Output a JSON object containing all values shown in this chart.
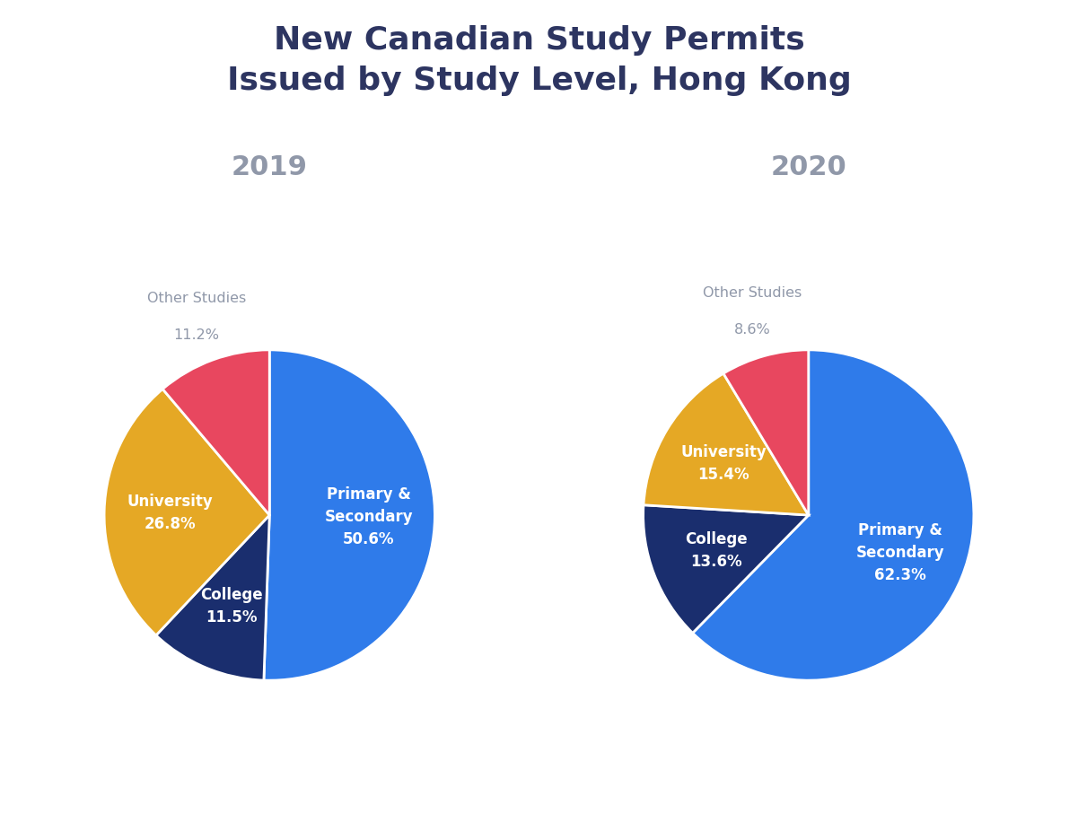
{
  "title": "New Canadian Study Permits\nIssued by Study Level, Hong Kong",
  "title_color": "#2d3561",
  "title_fontsize": 26,
  "background_color": "#ffffff",
  "charts": [
    {
      "year": "2019",
      "year_color": "#9098a9",
      "year_fontsize": 22,
      "labels": [
        "Primary &\nSecondary",
        "College",
        "University",
        "Other Studies"
      ],
      "values": [
        50.6,
        11.5,
        26.8,
        11.2
      ],
      "colors": [
        "#2f7bea",
        "#1a2e6e",
        "#e5a825",
        "#e8475f"
      ],
      "label_colors": [
        "#ffffff",
        "#ffffff",
        "#ffffff",
        "#9098a9"
      ],
      "pct_labels": [
        "50.6%",
        "11.5%",
        "26.8%",
        "11.2%"
      ],
      "startangle": 90
    },
    {
      "year": "2020",
      "year_color": "#9098a9",
      "year_fontsize": 22,
      "labels": [
        "Primary &\nSecondary",
        "College",
        "University",
        "Other Studies"
      ],
      "values": [
        62.3,
        13.6,
        15.4,
        8.6
      ],
      "colors": [
        "#2f7bea",
        "#1a2e6e",
        "#e5a825",
        "#e8475f"
      ],
      "label_colors": [
        "#ffffff",
        "#ffffff",
        "#ffffff",
        "#9098a9"
      ],
      "pct_labels": [
        "62.3%",
        "13.6%",
        "15.4%",
        "8.6%"
      ],
      "startangle": 90
    }
  ]
}
